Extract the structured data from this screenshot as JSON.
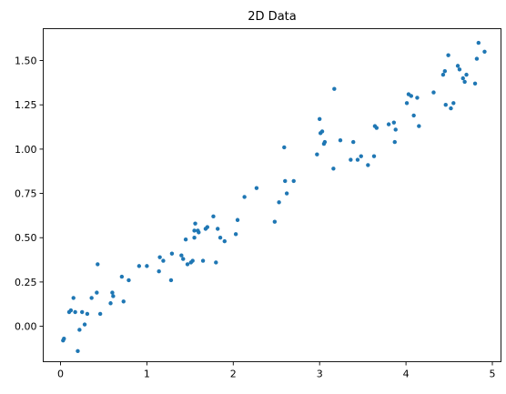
{
  "chart_data": {
    "type": "scatter",
    "title": "2D Data",
    "xlabel": "",
    "ylabel": "",
    "xlim": [
      -0.2,
      5.1
    ],
    "ylim": [
      -0.2,
      1.68
    ],
    "xticks": [
      0,
      1,
      2,
      3,
      4,
      5
    ],
    "xtick_labels": [
      "0",
      "1",
      "2",
      "3",
      "4",
      "5"
    ],
    "yticks": [
      0.0,
      0.25,
      0.5,
      0.75,
      1.0,
      1.25,
      1.5
    ],
    "ytick_labels": [
      "0.00",
      "0.25",
      "0.50",
      "0.75",
      "1.00",
      "1.25",
      "1.50"
    ],
    "grid": false,
    "marker_color": "#1f77b4",
    "points": [
      [
        0.03,
        -0.08
      ],
      [
        0.04,
        -0.07
      ],
      [
        0.1,
        0.08
      ],
      [
        0.12,
        0.09
      ],
      [
        0.15,
        0.16
      ],
      [
        0.17,
        0.08
      ],
      [
        0.2,
        -0.14
      ],
      [
        0.22,
        -0.02
      ],
      [
        0.25,
        0.08
      ],
      [
        0.28,
        0.01
      ],
      [
        0.31,
        0.07
      ],
      [
        0.36,
        0.16
      ],
      [
        0.42,
        0.19
      ],
      [
        0.43,
        0.35
      ],
      [
        0.46,
        0.07
      ],
      [
        0.58,
        0.13
      ],
      [
        0.6,
        0.19
      ],
      [
        0.61,
        0.17
      ],
      [
        0.71,
        0.28
      ],
      [
        0.73,
        0.14
      ],
      [
        0.79,
        0.26
      ],
      [
        0.91,
        0.34
      ],
      [
        1.0,
        0.34
      ],
      [
        1.14,
        0.31
      ],
      [
        1.15,
        0.39
      ],
      [
        1.19,
        0.37
      ],
      [
        1.28,
        0.26
      ],
      [
        1.29,
        0.41
      ],
      [
        1.4,
        0.4
      ],
      [
        1.42,
        0.38
      ],
      [
        1.45,
        0.49
      ],
      [
        1.47,
        0.35
      ],
      [
        1.51,
        0.36
      ],
      [
        1.53,
        0.37
      ],
      [
        1.55,
        0.5
      ],
      [
        1.55,
        0.54
      ],
      [
        1.56,
        0.58
      ],
      [
        1.59,
        0.54
      ],
      [
        1.6,
        0.53
      ],
      [
        1.65,
        0.37
      ],
      [
        1.68,
        0.55
      ],
      [
        1.7,
        0.56
      ],
      [
        1.77,
        0.62
      ],
      [
        1.8,
        0.36
      ],
      [
        1.82,
        0.55
      ],
      [
        1.85,
        0.5
      ],
      [
        1.9,
        0.48
      ],
      [
        2.03,
        0.52
      ],
      [
        2.05,
        0.6
      ],
      [
        2.13,
        0.73
      ],
      [
        2.27,
        0.78
      ],
      [
        2.48,
        0.59
      ],
      [
        2.53,
        0.7
      ],
      [
        2.59,
        1.01
      ],
      [
        2.6,
        0.82
      ],
      [
        2.62,
        0.75
      ],
      [
        2.7,
        0.82
      ],
      [
        2.97,
        0.97
      ],
      [
        3.0,
        1.17
      ],
      [
        3.01,
        1.09
      ],
      [
        3.03,
        1.1
      ],
      [
        3.05,
        1.03
      ],
      [
        3.06,
        1.04
      ],
      [
        3.16,
        0.89
      ],
      [
        3.17,
        1.34
      ],
      [
        3.24,
        1.05
      ],
      [
        3.36,
        0.94
      ],
      [
        3.39,
        1.04
      ],
      [
        3.44,
        0.94
      ],
      [
        3.48,
        0.96
      ],
      [
        3.56,
        0.91
      ],
      [
        3.63,
        0.96
      ],
      [
        3.64,
        1.13
      ],
      [
        3.66,
        1.12
      ],
      [
        3.8,
        1.14
      ],
      [
        3.86,
        1.15
      ],
      [
        3.87,
        1.04
      ],
      [
        3.88,
        1.11
      ],
      [
        4.01,
        1.26
      ],
      [
        4.03,
        1.31
      ],
      [
        4.06,
        1.3
      ],
      [
        4.09,
        1.19
      ],
      [
        4.13,
        1.29
      ],
      [
        4.15,
        1.13
      ],
      [
        4.32,
        1.32
      ],
      [
        4.43,
        1.42
      ],
      [
        4.45,
        1.44
      ],
      [
        4.46,
        1.25
      ],
      [
        4.49,
        1.53
      ],
      [
        4.52,
        1.23
      ],
      [
        4.55,
        1.26
      ],
      [
        4.6,
        1.47
      ],
      [
        4.62,
        1.45
      ],
      [
        4.66,
        1.4
      ],
      [
        4.68,
        1.38
      ],
      [
        4.7,
        1.42
      ],
      [
        4.8,
        1.37
      ],
      [
        4.82,
        1.51
      ],
      [
        4.84,
        1.6
      ],
      [
        4.91,
        1.55
      ]
    ]
  }
}
